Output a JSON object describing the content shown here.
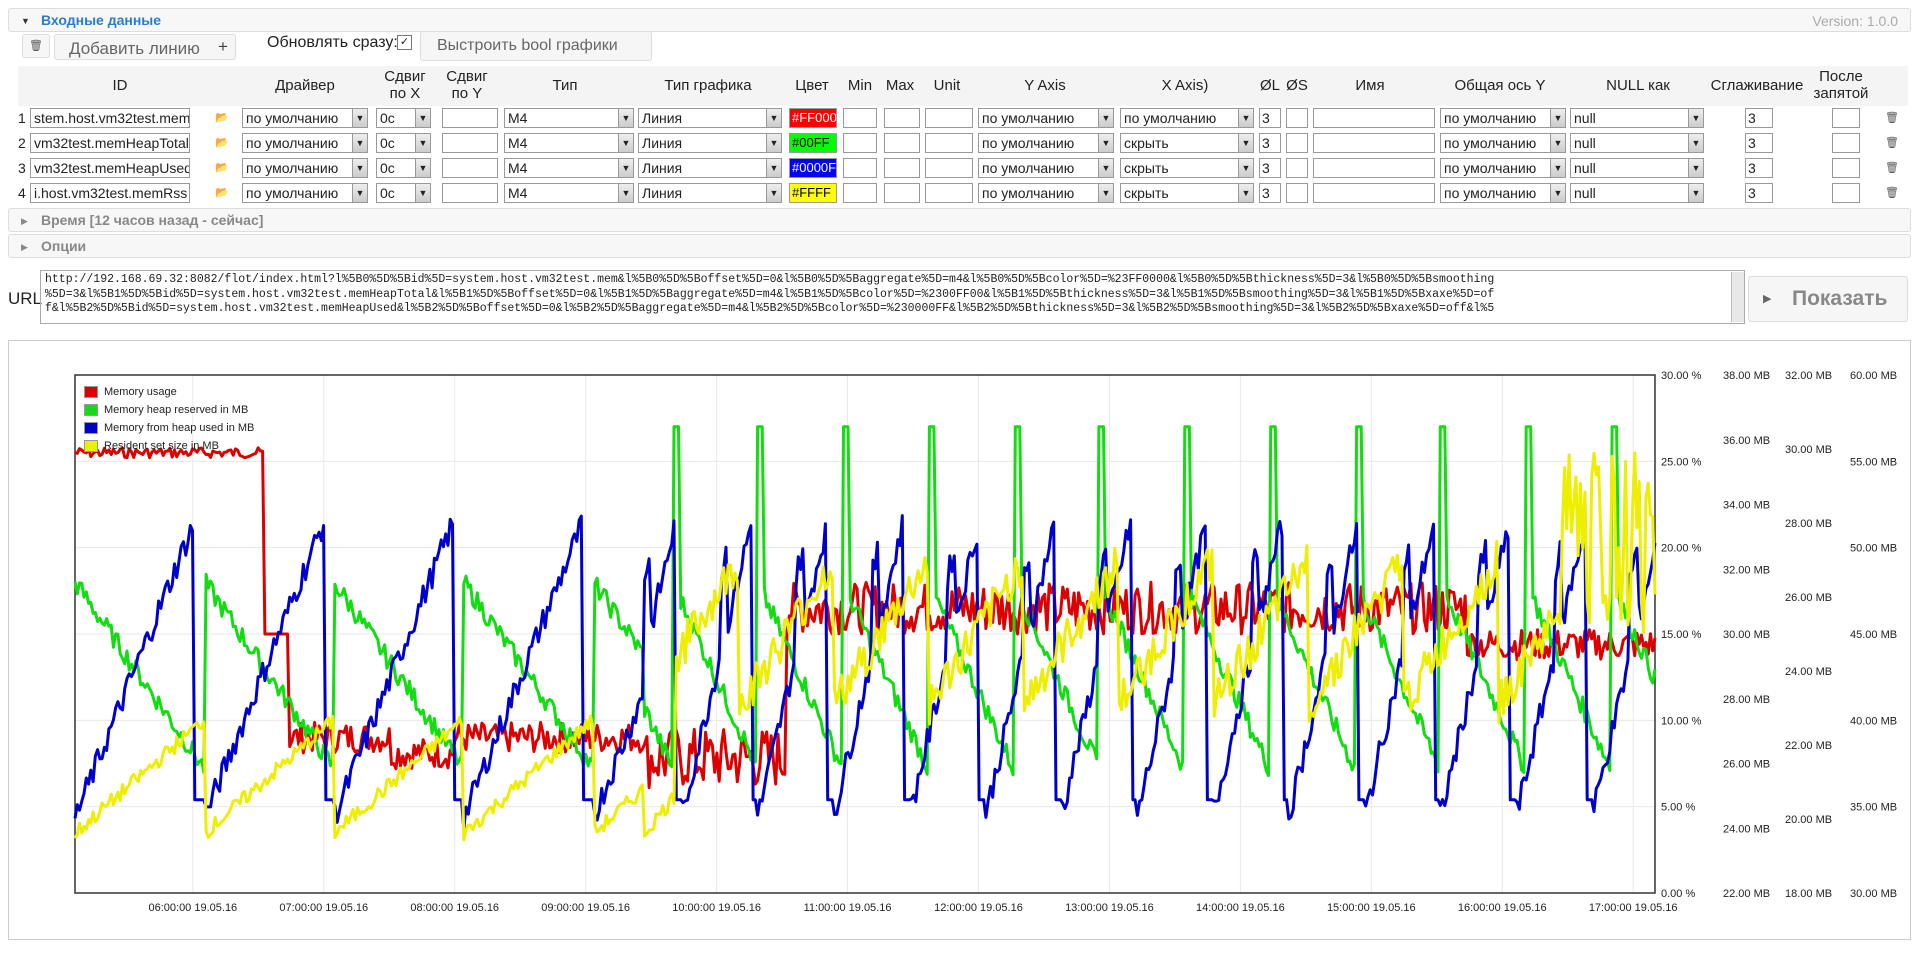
{
  "header": {
    "title": "Входные данные",
    "version": "Version: 1.0.0"
  },
  "toolbar": {
    "add_line": "Добавить линию",
    "plus": "+",
    "update_now": "Обновлять сразу:",
    "build_bool": "Выстроить bool графики"
  },
  "columns": {
    "id": "ID",
    "driver": "Драйвер",
    "shift_x": "Сдвиг по X",
    "shift_y": "Сдвиг по Y",
    "type": "Тип",
    "chart_type": "Тип графика",
    "color": "Цвет",
    "min": "Min",
    "max": "Max",
    "unit": "Unit",
    "y_axis": "Y Axis",
    "x_axis": "X Axis)",
    "thick": "ØL",
    "size": "ØS",
    "name": "Имя",
    "common_y": "Общая ось Y",
    "null_as": "NULL как",
    "smoothing": "Сглаживание",
    "after_comma": "После запятой"
  },
  "rows": [
    {
      "n": "1",
      "id": "stem.host.vm32test.mem",
      "driver": "по умолчанию",
      "shift_x": "0c",
      "type": "M4",
      "chart_type": "Линия",
      "color_text": "#FF000",
      "color": "#ff0000",
      "color_fg": "#ffffff",
      "y_axis": "по умолчанию",
      "x_axis": "по умолчанию",
      "thick": "3",
      "common_y": "по умолчанию",
      "null_as": "null",
      "smoothing": "3"
    },
    {
      "n": "2",
      "id": "vm32test.memHeapTotal",
      "driver": "по умолчанию",
      "shift_x": "0c",
      "type": "M4",
      "chart_type": "Линия",
      "color_text": "#00FF",
      "color": "#00ff00",
      "color_fg": "#000000",
      "y_axis": "по умолчанию",
      "x_axis": "скрыть",
      "thick": "3",
      "common_y": "по умолчанию",
      "null_as": "null",
      "smoothing": "3"
    },
    {
      "n": "3",
      "id": "vm32test.memHeapUsed",
      "driver": "по умолчанию",
      "shift_x": "0c",
      "type": "M4",
      "chart_type": "Линия",
      "color_text": "#0000F",
      "color": "#0000ff",
      "color_fg": "#ffffff",
      "y_axis": "по умолчанию",
      "x_axis": "скрыть",
      "thick": "3",
      "common_y": "по умолчанию",
      "null_as": "null",
      "smoothing": "3"
    },
    {
      "n": "4",
      "id": "i.host.vm32test.memRss",
      "driver": "по умолчанию",
      "shift_x": "0c",
      "type": "M4",
      "chart_type": "Линия",
      "color_text": "#FFFF",
      "color": "#ffff00",
      "color_fg": "#000000",
      "y_axis": "по умолчанию",
      "x_axis": "скрыть",
      "thick": "3",
      "common_y": "по умолчанию",
      "null_as": "null",
      "smoothing": "3"
    }
  ],
  "sections": {
    "time": "Время [12 часов назад - сейчас]",
    "options": "Опции"
  },
  "url": {
    "label": "URL",
    "line1": "http://192.168.69.32:8082/flot/index.html?l%5B0%5D%5Bid%5D=system.host.vm32test.mem&l%5B0%5D%5Boffset%5D=0&l%5B0%5D%5Baggregate%5D=m4&l%5B0%5D%5Bcolor%5D=%23FF0000&l%5B0%5D%5Bthickness%5D=3&l%5B0%5D%5Bsmoothing",
    "line2": "%5D=3&l%5B1%5D%5Bid%5D=system.host.vm32test.memHeapTotal&l%5B1%5D%5Boffset%5D=0&l%5B1%5D%5Baggregate%5D=m4&l%5B1%5D%5Bcolor%5D=%2300FF00&l%5B1%5D%5Bthickness%5D=3&l%5B1%5D%5Bsmoothing%5D=3&l%5B1%5D%5Bxaxe%5D=of",
    "line3": "f&l%5B2%5D%5Bid%5D=system.host.vm32test.memHeapUsed&l%5B2%5D%5Boffset%5D=0&l%5B2%5D%5Baggregate%5D=m4&l%5B2%5D%5Bcolor%5D=%230000FF&l%5B2%5D%5Bthickness%5D=3&l%5B2%5D%5Bsmoothing%5D=3&l%5B2%5D%5Bxaxe%5D=off&l%5",
    "show": "Показать"
  },
  "chart_data": {
    "type": "line",
    "x_ticks": [
      "06:00:00 19.05.16",
      "07:00:00 19.05.16",
      "08:00:00 19.05.16",
      "09:00:00 19.05.16",
      "10:00:00 19.05.16",
      "11:00:00 19.05.16",
      "12:00:00 19.05.16",
      "13:00:00 19.05.16",
      "14:00:00 19.05.16",
      "15:00:00 19.05.16",
      "16:00:00 19.05.16",
      "17:00:00 19.05.16"
    ],
    "x_range": [
      "05:06:00 19.05.16",
      "17:10:00 19.05.16"
    ],
    "y_axes": [
      {
        "ticks": [
          "0.00 %",
          "5.00 %",
          "10.00 %",
          "15.00 %",
          "20.00 %",
          "25.00 %",
          "30.00 %"
        ],
        "range": [
          0,
          30
        ]
      },
      {
        "ticks": [
          "22.00 MB",
          "24.00 MB",
          "26.00 MB",
          "28.00 MB",
          "30.00 MB",
          "32.00 MB",
          "34.00 MB",
          "36.00 MB",
          "38.00 MB"
        ],
        "range": [
          22,
          38
        ]
      },
      {
        "ticks": [
          "18.00 MB",
          "20.00 MB",
          "22.00 MB",
          "24.00 MB",
          "26.00 MB",
          "28.00 MB",
          "30.00 MB",
          "32.00 MB"
        ],
        "range": [
          18,
          32
        ]
      },
      {
        "ticks": [
          "30.00 MB",
          "35.00 MB",
          "40.00 MB",
          "45.00 MB",
          "50.00 MB",
          "55.00 MB",
          "60.00 MB"
        ],
        "range": [
          30,
          60
        ]
      }
    ],
    "legend_position": "top-left",
    "grid": true,
    "series": [
      {
        "name": "Memory usage",
        "color": "#dd0000",
        "axis": 0
      },
      {
        "name": "Memory heap reserved in MB",
        "color": "#11dd11",
        "axis": 1
      },
      {
        "name": "Memory from heap used in MB",
        "color": "#0000cc",
        "axis": 2
      },
      {
        "name": "Resident set size in MB",
        "color": "#eeee00",
        "axis": 3
      }
    ]
  }
}
